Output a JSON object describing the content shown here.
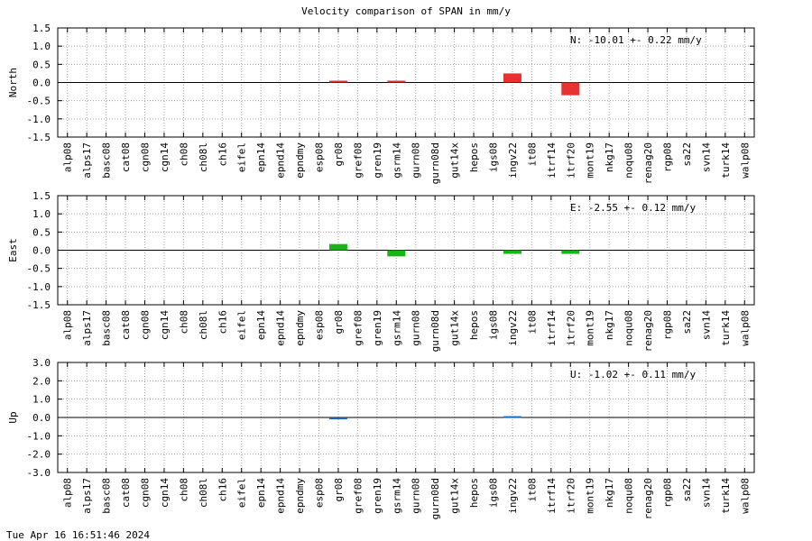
{
  "title": "Velocity comparison of SPAN in mm/y",
  "timestamp": "Tue Apr 16 16:51:46 2024",
  "colors": {
    "north": "#e83232",
    "east": "#18b418",
    "up": "#1466c8",
    "grid": "#a0a0a0"
  },
  "chart_data": [
    {
      "type": "bar",
      "ylabel": "North",
      "ylim": [
        -1.5,
        1.5
      ],
      "yticks": [
        "1.5",
        "1.0",
        "0.5",
        "0.0",
        "-0.5",
        "-1.0",
        "-1.5"
      ],
      "annotation": "N: -10.01 +-  0.22 mm/y",
      "categories": [
        "alp08",
        "alps17",
        "basc08",
        "cat08",
        "cgn08",
        "cgn14",
        "ch08",
        "ch08l",
        "ch16",
        "eifel",
        "epn14",
        "epnd14",
        "epndmy",
        "esp08",
        "gr08",
        "gref08",
        "gren19",
        "gsrm14",
        "gurn08",
        "gurn08d",
        "gut14x",
        "hepos",
        "igs08",
        "ingv22",
        "it08",
        "itrf14",
        "itrf20",
        "mont19",
        "nkg17",
        "noqu08",
        "renag20",
        "rgp08",
        "sa22",
        "svn14",
        "turk14",
        "walp08"
      ],
      "values": [
        null,
        null,
        null,
        null,
        null,
        null,
        null,
        null,
        null,
        null,
        null,
        null,
        null,
        null,
        0.05,
        null,
        null,
        0.05,
        null,
        null,
        null,
        null,
        null,
        0.25,
        null,
        null,
        -0.35,
        null,
        null,
        null,
        null,
        null,
        null,
        null,
        null,
        null
      ]
    },
    {
      "type": "bar",
      "ylabel": "East",
      "ylim": [
        -1.5,
        1.5
      ],
      "yticks": [
        "1.5",
        "1.0",
        "0.5",
        "0.0",
        "-0.5",
        "-1.0",
        "-1.5"
      ],
      "annotation": "E:  -2.55 +-  0.12 mm/y",
      "categories": [
        "alp08",
        "alps17",
        "basc08",
        "cat08",
        "cgn08",
        "cgn14",
        "ch08",
        "ch08l",
        "ch16",
        "eifel",
        "epn14",
        "epnd14",
        "epndmy",
        "esp08",
        "gr08",
        "gref08",
        "gren19",
        "gsrm14",
        "gurn08",
        "gurn08d",
        "gut14x",
        "hepos",
        "igs08",
        "ingv22",
        "it08",
        "itrf14",
        "itrf20",
        "mont19",
        "nkg17",
        "noqu08",
        "renag20",
        "rgp08",
        "sa22",
        "svn14",
        "turk14",
        "walp08"
      ],
      "values": [
        null,
        null,
        null,
        null,
        null,
        null,
        null,
        null,
        null,
        null,
        null,
        null,
        null,
        null,
        0.17,
        null,
        null,
        -0.17,
        null,
        null,
        null,
        null,
        null,
        -0.1,
        null,
        null,
        -0.1,
        null,
        null,
        null,
        null,
        null,
        null,
        null,
        null,
        null
      ]
    },
    {
      "type": "bar",
      "ylabel": "Up",
      "ylim": [
        -3.0,
        3.0
      ],
      "yticks": [
        "3.0",
        "2.0",
        "1.0",
        "0.0",
        "-1.0",
        "-2.0",
        "-3.0"
      ],
      "annotation": "U:  -1.02 +-  0.11 mm/y",
      "categories": [
        "alp08",
        "alps17",
        "basc08",
        "cat08",
        "cgn08",
        "cgn14",
        "ch08",
        "ch08l",
        "ch16",
        "eifel",
        "epn14",
        "epnd14",
        "epndmy",
        "esp08",
        "gr08",
        "gref08",
        "gren19",
        "gsrm14",
        "gurn08",
        "gurn08d",
        "gut14x",
        "hepos",
        "igs08",
        "ingv22",
        "it08",
        "itrf14",
        "itrf20",
        "mont19",
        "nkg17",
        "noqu08",
        "renag20",
        "rgp08",
        "sa22",
        "svn14",
        "turk14",
        "walp08"
      ],
      "values": [
        null,
        null,
        null,
        null,
        null,
        null,
        null,
        null,
        null,
        null,
        null,
        null,
        null,
        null,
        -0.1,
        null,
        null,
        null,
        null,
        null,
        null,
        null,
        null,
        0.07,
        null,
        null,
        null,
        null,
        null,
        null,
        null,
        null,
        null,
        null,
        null,
        null
      ]
    }
  ]
}
